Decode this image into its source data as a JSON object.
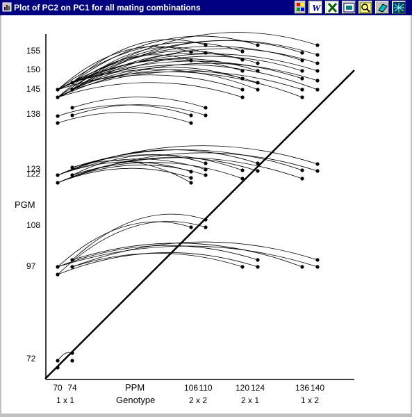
{
  "window": {
    "title": "Plot of PC2 on PC1 for all mating combinations",
    "colors": {
      "titlebar": "#000080",
      "plot_bg": "#ffffff",
      "chrome": "#c0c0c0"
    }
  },
  "toolbar": [
    {
      "icon": "color-palette-icon"
    },
    {
      "icon": "word-icon"
    },
    {
      "icon": "excel-icon"
    },
    {
      "icon": "powerpoint-icon"
    },
    {
      "icon": "magnifier-icon"
    },
    {
      "icon": "eraser-icon"
    },
    {
      "icon": "network-icon"
    }
  ],
  "chart_data": {
    "type": "scatter",
    "title": "",
    "xlabel": "PPM",
    "xlabel2": "Genotype",
    "ylabel": "PGM",
    "x_ticks": [
      "70",
      "74",
      "106",
      "110",
      "120",
      "124",
      "136",
      "140"
    ],
    "x_groups": [
      "1 x 1",
      "2 x 2",
      "2 x 1",
      "1 x 2"
    ],
    "y_ticks": [
      "72",
      "97",
      "108",
      "122",
      "123",
      "138",
      "145",
      "150",
      "155"
    ],
    "diagonal": true,
    "clusters": [
      {
        "y_base": 97,
        "left_x": [
          70,
          74
        ],
        "right_x": [
          106,
          110,
          120,
          124,
          136,
          140
        ]
      },
      {
        "y_base": 122,
        "left_x": [
          70,
          74
        ],
        "right_x": [
          106,
          110,
          120,
          124,
          136,
          140
        ]
      },
      {
        "y_base": 138,
        "left_x": [
          70,
          74
        ],
        "right_x": [
          106,
          110
        ]
      },
      {
        "y_base": 145,
        "left_x": [
          70,
          74
        ],
        "right_x": [
          106,
          110,
          120,
          124,
          136,
          140
        ]
      },
      {
        "y_base": 72,
        "left_x": [
          70,
          74
        ],
        "right_x": []
      }
    ]
  }
}
